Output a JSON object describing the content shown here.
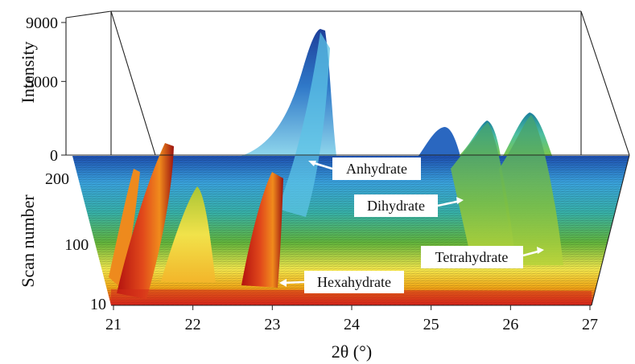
{
  "chart_data": {
    "type": "surface",
    "xlabel": "2θ (°)",
    "zlabel": "Intensity",
    "ylabel": "Scan number",
    "x_ticks": [
      "21",
      "22",
      "23",
      "24",
      "25",
      "26",
      "27"
    ],
    "z_ticks": [
      "0",
      "5000",
      "9000"
    ],
    "y_ticks": [
      "10",
      "100",
      "200"
    ],
    "xlim": [
      21,
      27
    ],
    "zlim": [
      0,
      9000
    ],
    "ylim": [
      10,
      200
    ],
    "annotations": [
      "Anhydrate",
      "Dihydrate",
      "Tetrahydrate",
      "Hexahydrate"
    ],
    "peaks": [
      {
        "phase": "Anhydrate",
        "x": 23.6,
        "intensity": 8600,
        "scan_range": [
          200,
          200
        ]
      },
      {
        "phase": "Dihydrate",
        "x": 25.2,
        "intensity": 2100,
        "scan_range": [
          200,
          150
        ]
      },
      {
        "phase": "Dihydrate",
        "x": 25.7,
        "intensity": 2500,
        "scan_range": [
          200,
          100
        ]
      },
      {
        "phase": "Dihydrate",
        "x": 26.2,
        "intensity": 2600,
        "scan_range": [
          200,
          100
        ]
      },
      {
        "phase": "Tetrahydrate",
        "x": 25.8,
        "intensity": 1500,
        "scan_range": [
          100,
          10
        ]
      },
      {
        "phase": "Tetrahydrate",
        "x": 26.3,
        "intensity": 1400,
        "scan_range": [
          100,
          10
        ]
      },
      {
        "phase": "Hexahydrate",
        "x": 21.2,
        "intensity": 4200,
        "scan_range": [
          200,
          10
        ]
      },
      {
        "phase": "Hexahydrate",
        "x": 21.7,
        "intensity": 6500,
        "scan_range": [
          200,
          10
        ]
      },
      {
        "phase": "Hexahydrate",
        "x": 22.1,
        "intensity": 5000,
        "scan_range": [
          200,
          10
        ]
      },
      {
        "phase": "Hexahydrate",
        "x": 22.8,
        "intensity": 5500,
        "scan_range": [
          200,
          10
        ]
      }
    ],
    "colormap": [
      "#d71c1c",
      "#f0a818",
      "#f3e64c",
      "#62b43c",
      "#37b0a8",
      "#3aa2dc",
      "#1d4fb0"
    ]
  }
}
